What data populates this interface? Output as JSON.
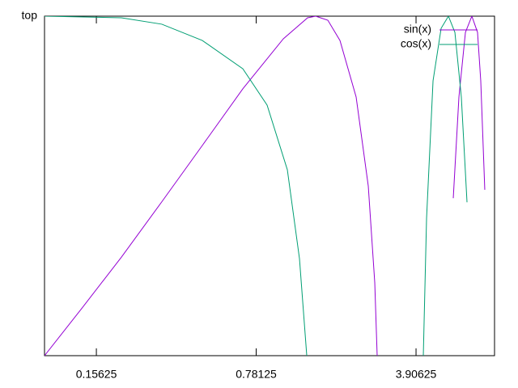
{
  "chart_data": {
    "type": "line",
    "xlog": true,
    "ylog": true,
    "xlim": [
      0.0927,
      8.61
    ],
    "ylim": [
      0.1,
      1
    ],
    "xticks": [
      0.15625,
      0.78125,
      3.90625
    ],
    "yticks": [
      {
        "value": 1,
        "label": "top"
      }
    ],
    "legend": "top-right",
    "series": [
      {
        "name": "sin(x)",
        "color": "#9400d3",
        "x": [
          0.0927,
          0.134,
          0.201,
          0.302,
          0.454,
          0.683,
          1.027,
          1.311,
          1.422,
          1.607,
          1.816,
          2.137,
          2.415,
          2.578,
          2.641,
          null,
          5.683,
          6.016,
          6.423,
          6.853,
          7.256,
          7.495,
          7.806
        ],
        "values": [
          0.1,
          0.137,
          0.195,
          0.284,
          0.416,
          0.611,
          0.858,
          0.989,
          1,
          0.973,
          0.848,
          0.578,
          0.316,
          0.164,
          0.1,
          null,
          0.291,
          0.578,
          0.896,
          1,
          0.896,
          0.645,
          0.308
        ]
      },
      {
        "name": "cos(x)",
        "color": "#009e73",
        "x": [
          0.0927,
          0.201,
          0.302,
          0.454,
          0.683,
          0.872,
          1.069,
          1.208,
          1.3,
          null,
          4.203,
          4.343,
          4.636,
          5.029,
          5.413,
          5.777,
          6.164,
          6.527
        ],
        "values": [
          1,
          0.989,
          0.947,
          0.848,
          0.7,
          0.547,
          0.353,
          0.193,
          0.1,
          null,
          0.1,
          0.254,
          0.645,
          0.921,
          1,
          0.896,
          0.578,
          0.283
        ]
      }
    ]
  }
}
